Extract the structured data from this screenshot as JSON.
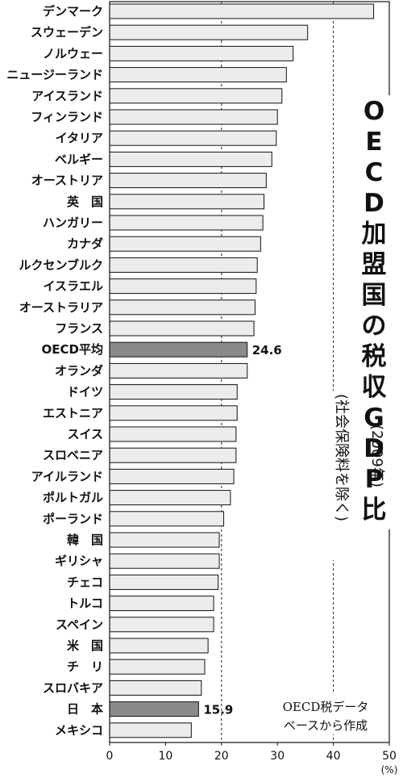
{
  "chart_data": {
    "type": "bar",
    "orientation": "horizontal",
    "title": "OECD加盟国の税収GDP比",
    "subtitle": "(2009年)",
    "note": "(社会保険料を除く)",
    "source": [
      "OECD税データ",
      "ベースから作成"
    ],
    "x_unit": "(%)",
    "xlim": [
      0,
      50
    ],
    "x_ticks": [
      "0",
      "10",
      "20",
      "30",
      "40",
      "50"
    ],
    "dashed_gridlines": [
      20,
      40
    ],
    "categories": [
      "デンマーク",
      "スウェーデン",
      "ノルウェー",
      "ニュージーランド",
      "アイスランド",
      "フィンランド",
      "イタリア",
      "ベルギー",
      "オーストリア",
      "英　国",
      "ハンガリー",
      "カナダ",
      "ルクセンブルク",
      "イスラエル",
      "オーストラリア",
      "フランス",
      "OECD平均",
      "オランダ",
      "ドイツ",
      "エストニア",
      "スイス",
      "スロベニア",
      "アイルランド",
      "ポルトガル",
      "ポーランド",
      "韓　国",
      "ギリシャ",
      "チェコ",
      "トルコ",
      "スペイン",
      "米　国",
      "チ　リ",
      "スロバキア",
      "日　本",
      "メキシコ"
    ],
    "values": [
      47.2,
      35.4,
      32.8,
      31.6,
      30.8,
      30.0,
      29.8,
      29.0,
      28.0,
      27.6,
      27.4,
      27.0,
      26.4,
      26.2,
      26.0,
      25.8,
      24.6,
      24.6,
      22.8,
      22.8,
      22.6,
      22.6,
      22.2,
      21.6,
      20.4,
      19.6,
      19.6,
      19.4,
      18.6,
      18.6,
      17.6,
      17.0,
      16.4,
      15.9,
      14.6
    ],
    "highlighted": [
      "OECD平均",
      "日　本"
    ],
    "data_labels": {
      "OECD平均": "24.6",
      "日　本": "15.9"
    },
    "colors": {
      "bar": "#ececec",
      "highlight": "#8a8a8a",
      "stroke": "#111111"
    }
  }
}
